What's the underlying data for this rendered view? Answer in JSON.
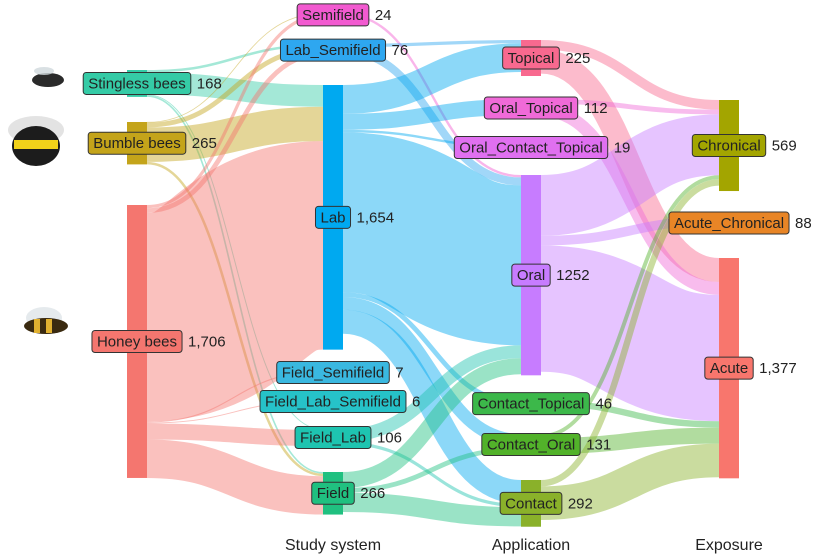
{
  "chart_data": {
    "type": "sankey",
    "columns": [
      null,
      "Study system",
      "Application",
      "Exposure"
    ],
    "nodes": [
      {
        "name": "Stingless bees",
        "value": 168,
        "color": "#35cba6",
        "column": 0
      },
      {
        "name": "Bumble bees",
        "value": 265,
        "color": "#c4a41a",
        "column": 0
      },
      {
        "name": "Honey bees",
        "value": 1706,
        "value_label": "1,706",
        "color": "#f4766f",
        "column": 0
      },
      {
        "name": "Semifield",
        "value": 24,
        "color": "#f25ad0",
        "column": 1
      },
      {
        "name": "Lab_Semifield",
        "value": 76,
        "color": "#2ea7f0",
        "column": 1
      },
      {
        "name": "Lab",
        "value": 1654,
        "value_label": "1,654",
        "color": "#00a9f0",
        "column": 1
      },
      {
        "name": "Field_Semifield",
        "value": 7,
        "color": "#3ab8e0",
        "column": 1
      },
      {
        "name": "Field_Lab_Semifield",
        "value": 6,
        "color": "#26c2c8",
        "column": 1
      },
      {
        "name": "Field_Lab",
        "value": 106,
        "color": "#1ec4b0",
        "column": 1
      },
      {
        "name": "Field",
        "value": 266,
        "color": "#20c080",
        "column": 1
      },
      {
        "name": "Topical",
        "value": 225,
        "color": "#f8698f",
        "column": 2
      },
      {
        "name": "Oral_Topical",
        "value": 112,
        "color": "#f06ad8",
        "column": 2
      },
      {
        "name": "Oral_Contact_Topical",
        "value": 19,
        "color": "#e070f0",
        "column": 2
      },
      {
        "name": "Oral",
        "value": 1252,
        "color": "#c77cff",
        "column": 2
      },
      {
        "name": "Contact_Topical",
        "value": 46,
        "color": "#3cb84a",
        "column": 2
      },
      {
        "name": "Contact_Oral",
        "value": 131,
        "color": "#52b22a",
        "column": 2
      },
      {
        "name": "Contact",
        "value": 292,
        "color": "#8ab12a",
        "column": 2
      },
      {
        "name": "Chronical",
        "value": 569,
        "color": "#a3a500",
        "column": 3
      },
      {
        "name": "Acute_Chronical",
        "value": 88,
        "color": "#e88526",
        "column": 3
      },
      {
        "name": "Acute",
        "value": 1377,
        "value_label": "1,377",
        "color": "#f8766d",
        "column": 3
      }
    ],
    "links": [
      {
        "source": "Stingless bees",
        "target": "Lab_Semifield",
        "value": 16
      },
      {
        "source": "Stingless bees",
        "target": "Lab",
        "value": 136
      },
      {
        "source": "Stingless bees",
        "target": "Field_Lab",
        "value": 6
      },
      {
        "source": "Stingless bees",
        "target": "Field",
        "value": 10
      },
      {
        "source": "Bumble bees",
        "target": "Semifield",
        "value": 4
      },
      {
        "source": "Bumble bees",
        "target": "Lab_Semifield",
        "value": 30
      },
      {
        "source": "Bumble bees",
        "target": "Lab",
        "value": 215
      },
      {
        "source": "Bumble bees",
        "target": "Field",
        "value": 16
      },
      {
        "source": "Honey bees",
        "target": "Semifield",
        "value": 20
      },
      {
        "source": "Honey bees",
        "target": "Lab_Semifield",
        "value": 30
      },
      {
        "source": "Honey bees",
        "target": "Lab",
        "value": 1303
      },
      {
        "source": "Honey bees",
        "target": "Field_Semifield",
        "value": 7
      },
      {
        "source": "Honey bees",
        "target": "Field_Lab_Semifield",
        "value": 6
      },
      {
        "source": "Honey bees",
        "target": "Field_Lab",
        "value": 100
      },
      {
        "source": "Honey bees",
        "target": "Field",
        "value": 240
      },
      {
        "source": "Semifield",
        "target": "Oral",
        "value": 15
      },
      {
        "source": "Lab_Semifield",
        "target": "Topical",
        "value": 20
      },
      {
        "source": "Lab_Semifield",
        "target": "Oral",
        "value": 50
      },
      {
        "source": "Lab",
        "target": "Topical",
        "value": 180
      },
      {
        "source": "Lab",
        "target": "Oral_Topical",
        "value": 100
      },
      {
        "source": "Lab",
        "target": "Oral_Contact_Topical",
        "value": 15
      },
      {
        "source": "Lab",
        "target": "Oral",
        "value": 1000
      },
      {
        "source": "Lab",
        "target": "Contact_Topical",
        "value": 30
      },
      {
        "source": "Lab",
        "target": "Contact_Oral",
        "value": 80
      },
      {
        "source": "Lab",
        "target": "Contact",
        "value": 150
      },
      {
        "source": "Field_Lab",
        "target": "Oral",
        "value": 80
      },
      {
        "source": "Field_Lab",
        "target": "Contact",
        "value": 20
      },
      {
        "source": "Field",
        "target": "Oral",
        "value": 100
      },
      {
        "source": "Field",
        "target": "Contact_Oral",
        "value": 30
      },
      {
        "source": "Field",
        "target": "Contact",
        "value": 120
      },
      {
        "source": "Topical",
        "target": "Chronical",
        "value": 60
      },
      {
        "source": "Topical",
        "target": "Acute",
        "value": 150
      },
      {
        "source": "Oral_Topical",
        "target": "Chronical",
        "value": 30
      },
      {
        "source": "Oral_Topical",
        "target": "Acute",
        "value": 80
      },
      {
        "source": "Oral",
        "target": "Chronical",
        "value": 380
      },
      {
        "source": "Oral",
        "target": "Acute_Chronical",
        "value": 60
      },
      {
        "source": "Oral",
        "target": "Acute",
        "value": 790
      },
      {
        "source": "Contact_Topical",
        "target": "Acute",
        "value": 40
      },
      {
        "source": "Contact_Oral",
        "target": "Chronical",
        "value": 25
      },
      {
        "source": "Contact_Oral",
        "target": "Acute",
        "value": 100
      },
      {
        "source": "Contact",
        "target": "Chronical",
        "value": 40
      },
      {
        "source": "Contact",
        "target": "Acute",
        "value": 210
      }
    ]
  }
}
